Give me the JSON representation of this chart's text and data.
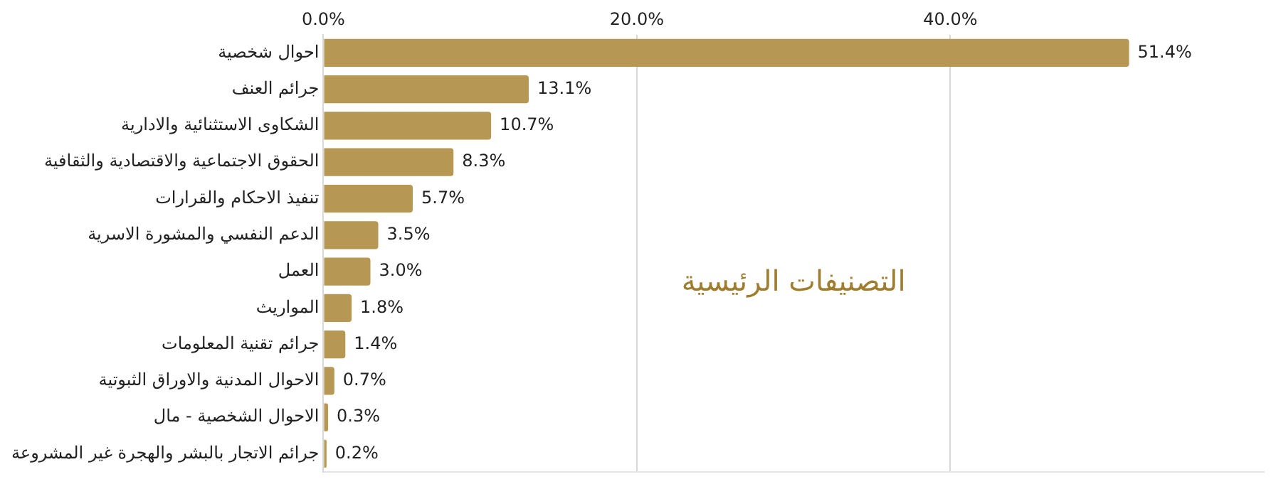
{
  "chart_data": {
    "type": "bar",
    "orientation": "horizontal",
    "title": "التصنيفات الرئيسية",
    "categories": [
      "احوال شخصية",
      "جرائم العنف",
      "الشكاوى الاستثنائية والادارية",
      "الحقوق الاجتماعية والاقتصادية والثقافية",
      "تنفيذ الاحكام والقرارات",
      "الدعم النفسي والمشورة الاسرية",
      "العمل",
      "المواريث",
      "جرائم تقنية المعلومات",
      "الاحوال المدنية والاوراق الثبوتية",
      "الاحوال الشخصية - مال",
      "جرائم الاتجار بالبشر والهجرة غير المشروعة"
    ],
    "values": [
      51.4,
      13.1,
      10.7,
      8.3,
      5.7,
      3.5,
      3.0,
      1.8,
      1.4,
      0.7,
      0.3,
      0.2
    ],
    "value_labels": [
      "51.4%",
      "13.1%",
      "10.7%",
      "8.3%",
      "5.7%",
      "3.5%",
      "3.0%",
      "1.8%",
      "1.4%",
      "0.7%",
      "0.3%",
      "0.2%"
    ],
    "color": "#b69854",
    "xlim": [
      0,
      60
    ],
    "xticks": [
      {
        "value": 0,
        "label": "0.0%"
      },
      {
        "value": 20,
        "label": "20.0%"
      },
      {
        "value": 40,
        "label": "40.0%"
      }
    ],
    "grid": "x",
    "legend": false
  }
}
